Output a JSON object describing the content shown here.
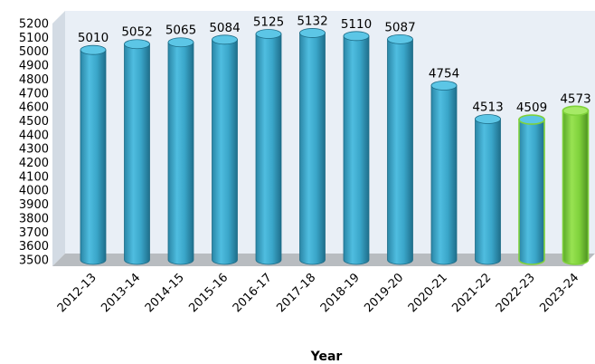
{
  "chart_data": {
    "type": "bar",
    "style": "3d-cylinder",
    "categories": [
      "2012-13",
      "2013-14",
      "2014-15",
      "2015-16",
      "2016-17",
      "2017-18",
      "2018-19",
      "2019-20",
      "2020-21",
      "2021-22",
      "2022-23",
      "2023-24"
    ],
    "values": [
      5010,
      5052,
      5065,
      5084,
      5125,
      5132,
      5110,
      5087,
      4754,
      4513,
      4509,
      4573
    ],
    "xlabel": "Year",
    "ylabel": "",
    "ylim": [
      3500,
      5200
    ],
    "yticks": [
      3500,
      3600,
      3700,
      3800,
      3900,
      4000,
      4100,
      4200,
      4300,
      4400,
      4500,
      4600,
      4700,
      4800,
      4900,
      5000,
      5100,
      5200
    ],
    "grid": false,
    "colors": {
      "bar_blue": "#3aa6c9",
      "bar_green": "#7fd13b",
      "bar_green_outlined_index": 10,
      "wall": "#e9eff6",
      "floor": "#b8bcc0"
    },
    "highlight": {
      "outlined_green": [
        10
      ],
      "filled_green": [
        11
      ]
    }
  }
}
